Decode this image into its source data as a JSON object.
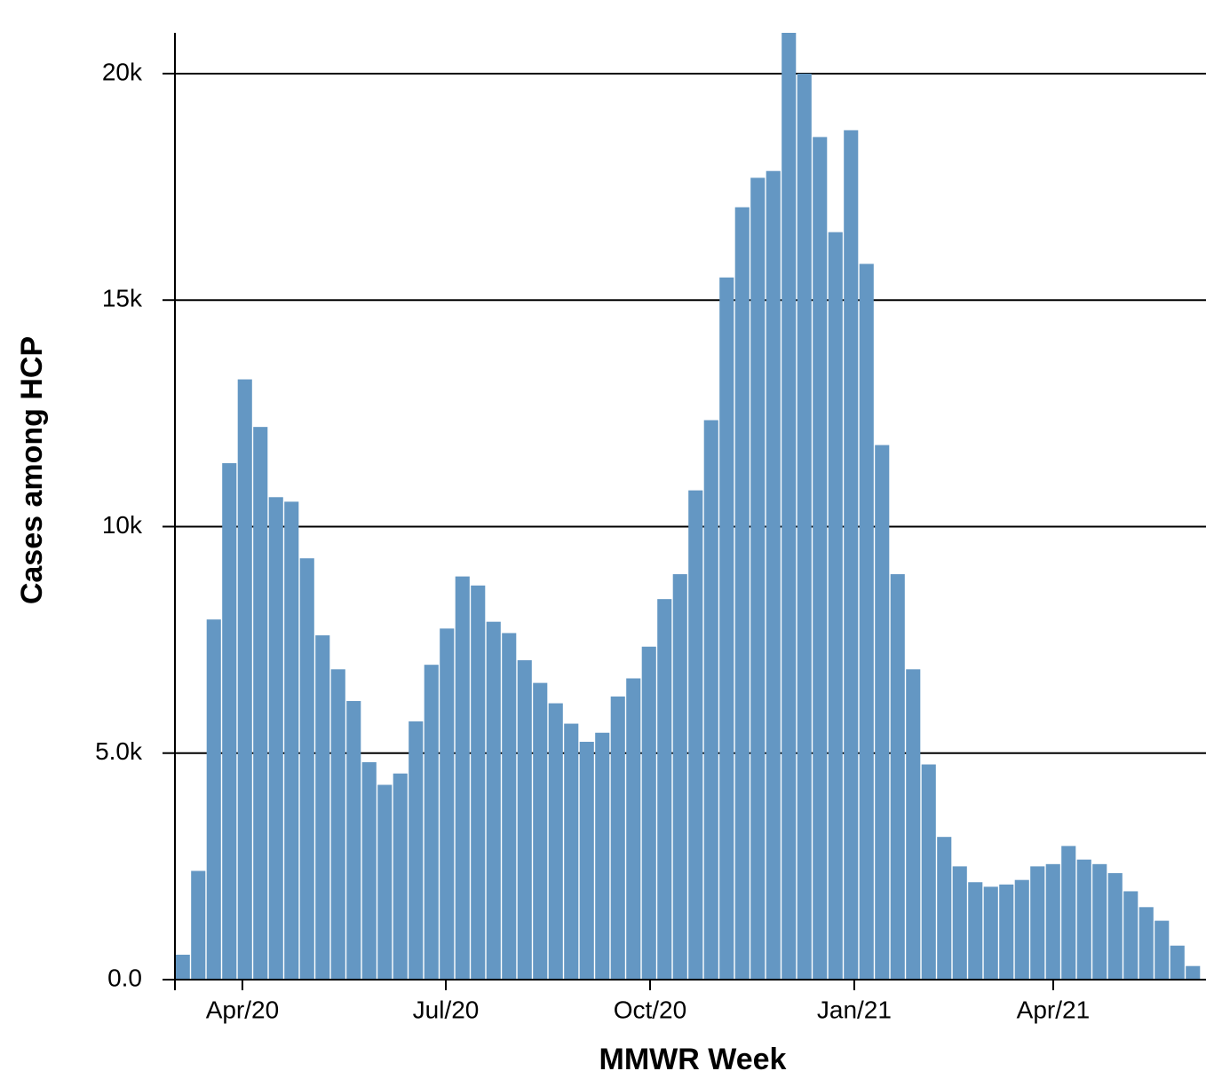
{
  "chart_data": {
    "type": "bar",
    "x_label": "MMWR Week",
    "y_label": "Cases among HCP",
    "categories": [
      null,
      null,
      null,
      null,
      null,
      null,
      null,
      null,
      null,
      null,
      null,
      null,
      null,
      null,
      null,
      null,
      null,
      null,
      null,
      null,
      null,
      null,
      null,
      null,
      null,
      null,
      null,
      null,
      null,
      null,
      null,
      null,
      null,
      null,
      null,
      null,
      null,
      null,
      null,
      null,
      null,
      null,
      null,
      null,
      null,
      null,
      null,
      null,
      null,
      null,
      null,
      null,
      null,
      null,
      null,
      null,
      null,
      null,
      null,
      null,
      null,
      null,
      null,
      null,
      null,
      null
    ],
    "values": [
      550,
      2400,
      7950,
      11400,
      13250,
      12200,
      10650,
      10550,
      9300,
      7600,
      6850,
      6150,
      4800,
      4300,
      4550,
      5700,
      6950,
      7750,
      8900,
      8700,
      7900,
      7650,
      7050,
      6550,
      6100,
      5650,
      5250,
      5450,
      6250,
      6650,
      7350,
      8400,
      8950,
      10800,
      12350,
      15500,
      17050,
      17700,
      17850,
      20900,
      20000,
      18600,
      16500,
      18750,
      15800,
      11800,
      8950,
      6850,
      4750,
      3150,
      2500,
      2150,
      2050,
      2100,
      2200,
      2500,
      2550,
      2950,
      2650,
      2550,
      2350,
      1950,
      1600,
      1300,
      750,
      300
    ],
    "color": "#6497c3",
    "ylim": [
      0,
      20900
    ],
    "yticks": [
      {
        "value": 0,
        "label": "0.0"
      },
      {
        "value": 5000,
        "label": "5.0k"
      },
      {
        "value": 10000,
        "label": "10k"
      },
      {
        "value": 15000,
        "label": "15k"
      },
      {
        "value": 20000,
        "label": "20k"
      }
    ],
    "xlim": [
      0,
      66
    ],
    "xticks": [
      {
        "value": 4.34,
        "label": "Apr/20"
      },
      {
        "value": 17.43,
        "label": "Jul/20"
      },
      {
        "value": 30.57,
        "label": "Oct/20"
      },
      {
        "value": 43.71,
        "label": "Jan/21"
      },
      {
        "value": 56.51,
        "label": "Apr/21"
      }
    ],
    "grid": true
  }
}
